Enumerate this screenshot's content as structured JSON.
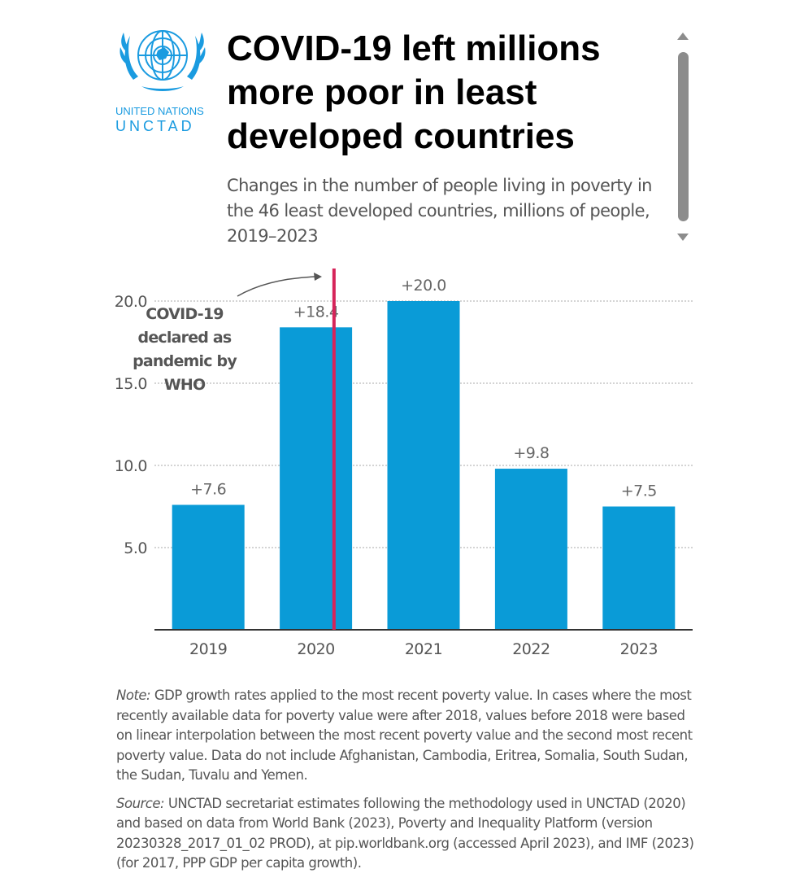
{
  "header": {
    "logo_line1": "UNITED NATIONS",
    "logo_line2": "UNCTAD",
    "title": "COVID-19 left millions more poor in least developed countries",
    "subtitle": "Changes in the number of people living in poverty in the 46 least developed countries, millions of people, 2019–2023"
  },
  "colors": {
    "bar": "#0a9bd7",
    "marker": "#d6245a",
    "grid": "#aaaaaa",
    "axis": "#333333",
    "brand": "#1a9be0"
  },
  "chart_data": {
    "type": "bar",
    "title": "COVID-19 left millions more poor in least developed countries",
    "xlabel": "",
    "ylabel": "",
    "categories": [
      "2019",
      "2020",
      "2021",
      "2022",
      "2023"
    ],
    "values": [
      7.6,
      18.4,
      20.0,
      9.8,
      7.5
    ],
    "data_labels": [
      "+7.6",
      "+18.4",
      "+20.0",
      "+9.8",
      "+7.5"
    ],
    "ylim": [
      0,
      20
    ],
    "yticks": [
      5,
      10,
      15,
      20
    ],
    "ytick_labels": [
      "5.0",
      "10.0",
      "15.0",
      "20.0"
    ],
    "grid": true,
    "marker_line": {
      "at_category": "2020",
      "offset": 0.25
    },
    "annotation": "COVID-19 declared as pandemic by WHO",
    "annotation_lines": [
      "COVID-19",
      "declared as",
      "pandemic by",
      "WHO"
    ]
  },
  "footer": {
    "note_label": "Note:",
    "note_text": " GDP growth rates applied to the most recent poverty value. In cases where the most recently available data for poverty value were after 2018, values before 2018 were based on linear interpolation between the most recent poverty value and the second most recent poverty value. Data do not include Afghanistan, Cambodia, Eritrea, Somalia, South Sudan, the Sudan, Tuvalu and Yemen.",
    "source_label": "Source:",
    "source_text": " UNCTAD secretariat estimates following the methodology used in UNCTAD (2020) and based on data from World Bank (2023), Poverty and Inequality Platform (version 20230328_2017_01_02 PROD), at pip.worldbank.org (accessed April 2023), and IMF (2023) (for 2017, PPP GDP per capita growth)."
  }
}
